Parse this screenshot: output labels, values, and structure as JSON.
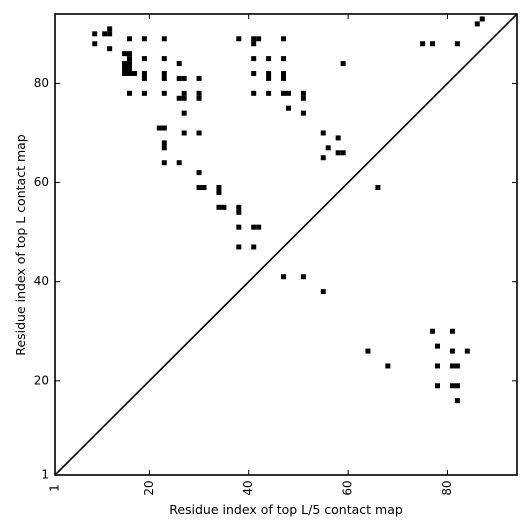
{
  "chart_data": {
    "type": "scatter",
    "title": "",
    "xlabel": "Residue index of top L/5 contact map",
    "ylabel": "Residue index of top L contact map",
    "xlim": [
      1,
      94
    ],
    "ylim": [
      1,
      94
    ],
    "xticks": [
      1,
      20,
      40,
      60,
      80
    ],
    "yticks": [
      1,
      20,
      40,
      60,
      80
    ],
    "xtick_labels": [
      "1",
      "20",
      "40",
      "60",
      "80"
    ],
    "ytick_labels": [
      "1",
      "20",
      "40",
      "60",
      "80"
    ],
    "x_tick_label_rotation": -90,
    "grid": false,
    "diagonal": true,
    "marker": "square",
    "marker_color": "#000000",
    "series": [
      {
        "points": [
          [
            9,
            90
          ],
          [
            9,
            88
          ],
          [
            11,
            90
          ],
          [
            12,
            91
          ],
          [
            12,
            90
          ],
          [
            12,
            87
          ],
          [
            15,
            86
          ],
          [
            16,
            86
          ],
          [
            15,
            84
          ],
          [
            16,
            84
          ],
          [
            15,
            83
          ],
          [
            16,
            83
          ],
          [
            15,
            82
          ],
          [
            16,
            82
          ],
          [
            17,
            82
          ],
          [
            16,
            85
          ],
          [
            16,
            89
          ],
          [
            16,
            78
          ],
          [
            19,
            89
          ],
          [
            19,
            85
          ],
          [
            19,
            82
          ],
          [
            19,
            81
          ],
          [
            19,
            78
          ],
          [
            23,
            89
          ],
          [
            23,
            85
          ],
          [
            23,
            82
          ],
          [
            23,
            81
          ],
          [
            23,
            78
          ],
          [
            22,
            71
          ],
          [
            23,
            71
          ],
          [
            23,
            68
          ],
          [
            23,
            67
          ],
          [
            23,
            64
          ],
          [
            26,
            84
          ],
          [
            26,
            81
          ],
          [
            27,
            81
          ],
          [
            26,
            77
          ],
          [
            27,
            77
          ],
          [
            27,
            78
          ],
          [
            27,
            74
          ],
          [
            27,
            70
          ],
          [
            26,
            64
          ],
          [
            30,
            81
          ],
          [
            30,
            78
          ],
          [
            30,
            77
          ],
          [
            30,
            70
          ],
          [
            30,
            62
          ],
          [
            30,
            59
          ],
          [
            31,
            59
          ],
          [
            34,
            59
          ],
          [
            34,
            58
          ],
          [
            34,
            55
          ],
          [
            35,
            55
          ],
          [
            38,
            89
          ],
          [
            38,
            55
          ],
          [
            38,
            54
          ],
          [
            38,
            51
          ],
          [
            38,
            47
          ],
          [
            41,
            89
          ],
          [
            42,
            89
          ],
          [
            41,
            88
          ],
          [
            41,
            85
          ],
          [
            41,
            82
          ],
          [
            41,
            78
          ],
          [
            41,
            51
          ],
          [
            42,
            51
          ],
          [
            41,
            47
          ],
          [
            44,
            85
          ],
          [
            44,
            82
          ],
          [
            44,
            81
          ],
          [
            44,
            78
          ],
          [
            47,
            89
          ],
          [
            47,
            85
          ],
          [
            47,
            82
          ],
          [
            47,
            81
          ],
          [
            47,
            78
          ],
          [
            48,
            78
          ],
          [
            48,
            75
          ],
          [
            47,
            41
          ],
          [
            51,
            78
          ],
          [
            51,
            77
          ],
          [
            51,
            74
          ],
          [
            51,
            41
          ],
          [
            55,
            70
          ],
          [
            55,
            65
          ],
          [
            56,
            67
          ],
          [
            55,
            38
          ],
          [
            58,
            69
          ],
          [
            58,
            66
          ],
          [
            59,
            66
          ],
          [
            59,
            84
          ],
          [
            66,
            59
          ],
          [
            64,
            26
          ],
          [
            68,
            23
          ],
          [
            75,
            88
          ],
          [
            77,
            88
          ],
          [
            82,
            88
          ],
          [
            86,
            92
          ],
          [
            87,
            93
          ],
          [
            77,
            30
          ],
          [
            81,
            30
          ],
          [
            78,
            27
          ],
          [
            81,
            26
          ],
          [
            84,
            26
          ],
          [
            78,
            23
          ],
          [
            81,
            23
          ],
          [
            82,
            23
          ],
          [
            78,
            19
          ],
          [
            81,
            19
          ],
          [
            82,
            19
          ],
          [
            82,
            16
          ]
        ]
      }
    ]
  }
}
